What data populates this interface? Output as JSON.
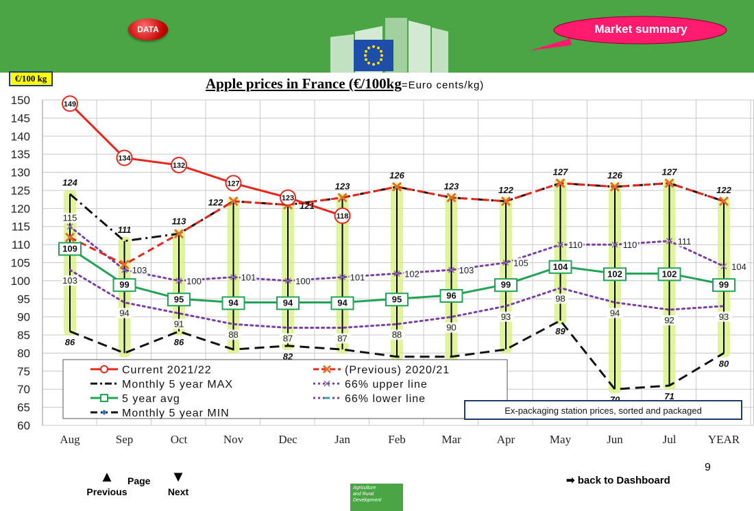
{
  "header": {
    "data_button": "DATA",
    "market_summary": "Market summary"
  },
  "chart_meta": {
    "unit_label": "€/100 kg",
    "title_main": "Apple prices in France (€/100kg",
    "title_suffix": "=Euro cents/kg)",
    "source_note": "Ex-packaging station prices, sorted and packaged"
  },
  "footer": {
    "previous": "Previous",
    "page": "Page",
    "next": "Next",
    "page_number": "9",
    "back_link": "back to Dashboard",
    "agri_line1": "Agriculture",
    "agri_line2": "and Rural",
    "agri_line3": "Development"
  },
  "chart_data": {
    "type": "line",
    "title": "Apple prices in France (€/100kg=Euro cents/kg)",
    "ylabel": "€/100 kg",
    "ylim": [
      60,
      150
    ],
    "yticks": [
      60,
      65,
      70,
      75,
      80,
      85,
      90,
      95,
      100,
      105,
      110,
      115,
      120,
      125,
      130,
      135,
      140,
      145,
      150
    ],
    "categories": [
      "Aug",
      "Sep",
      "Oct",
      "Nov",
      "Dec",
      "Jan",
      "Feb",
      "Mar",
      "Apr",
      "May",
      "Jun",
      "Jul",
      "YEAR"
    ],
    "grid": true,
    "legend_position": "bottom-left",
    "series": [
      {
        "name": "Current 2021/22",
        "color": "#e8251b",
        "values": [
          149,
          134,
          132,
          127,
          123,
          118,
          null,
          null,
          null,
          null,
          null,
          null,
          null
        ],
        "labels": [
          "149",
          "134",
          "132",
          "127",
          "123",
          "118",
          "",
          "",
          "",
          "",
          "",
          "",
          ""
        ]
      },
      {
        "name": "(Previous) 2020/21",
        "color": "#e8251b",
        "values": [
          112,
          104.5,
          113,
          122,
          121,
          123,
          126,
          123,
          122,
          127,
          126,
          127,
          122
        ],
        "labels": [
          "",
          "",
          "113",
          "122",
          "121",
          "123",
          "126",
          "123",
          "122",
          "127",
          "126",
          "127",
          "122"
        ]
      },
      {
        "name": "Monthly 5 year MAX",
        "color": "#111111",
        "values": [
          124,
          111,
          113,
          122,
          121,
          123,
          126,
          123,
          122,
          127,
          126,
          127,
          122
        ],
        "labels": [
          "124",
          "111",
          "",
          "",
          "",
          "",
          "",
          "",
          "",
          "",
          "",
          "",
          ""
        ]
      },
      {
        "name": "66% upper line",
        "color": "#7a3fa5",
        "values": [
          115,
          103,
          100,
          101,
          100,
          101,
          102,
          103,
          105,
          110,
          110,
          111,
          104
        ],
        "labels": [
          "115",
          "103",
          "100",
          "101",
          "100",
          "101",
          "102",
          "103",
          "105",
          "110",
          "110",
          "111",
          "104"
        ]
      },
      {
        "name": "5 year avg",
        "color": "#21a355",
        "values": [
          109,
          99,
          95,
          94,
          94,
          94,
          95,
          96,
          99,
          104,
          102,
          102,
          99
        ],
        "labels": [
          "109",
          "99",
          "95",
          "94",
          "94",
          "94",
          "95",
          "96",
          "99",
          "104",
          "102",
          "102",
          "99"
        ]
      },
      {
        "name": "66% lower line",
        "color": "#7a3fa5",
        "values": [
          103,
          94,
          91,
          88,
          87,
          87,
          88,
          90,
          93,
          98,
          94,
          92,
          93
        ],
        "labels": [
          "103",
          "94",
          "91",
          "88",
          "87",
          "87",
          "88",
          "90",
          "93",
          "98",
          "94",
          "92",
          "93"
        ]
      },
      {
        "name": "Monthly 5 year MIN",
        "color": "#111111",
        "values": [
          86,
          80,
          86,
          81,
          82,
          81,
          79,
          79,
          81,
          89,
          70,
          71,
          80
        ],
        "labels": [
          "86",
          "",
          "86",
          "",
          "82",
          "",
          "",
          "",
          "",
          "89",
          "70",
          "71",
          "80"
        ]
      }
    ]
  }
}
